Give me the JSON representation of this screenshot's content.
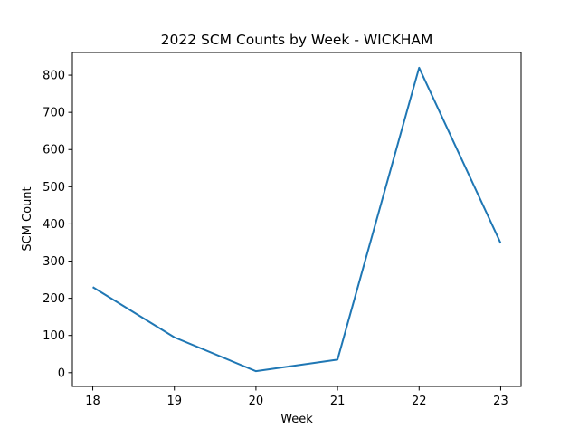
{
  "chart_data": {
    "type": "line",
    "title": "2022 SCM Counts by Week - WICKHAM",
    "xlabel": "Week",
    "ylabel": "SCM Count",
    "x": [
      18,
      19,
      20,
      21,
      22,
      23
    ],
    "series": [
      {
        "values": [
          230,
          95,
          4,
          35,
          820,
          348
        ],
        "color": "#1f77b4"
      }
    ],
    "xlim": [
      17.75,
      23.25
    ],
    "ylim": [
      -37,
      861
    ],
    "xticks": [
      "18",
      "19",
      "20",
      "21",
      "22",
      "23"
    ],
    "yticks": [
      "0",
      "100",
      "200",
      "300",
      "400",
      "500",
      "600",
      "700",
      "800"
    ],
    "grid": false,
    "legend": "none"
  }
}
